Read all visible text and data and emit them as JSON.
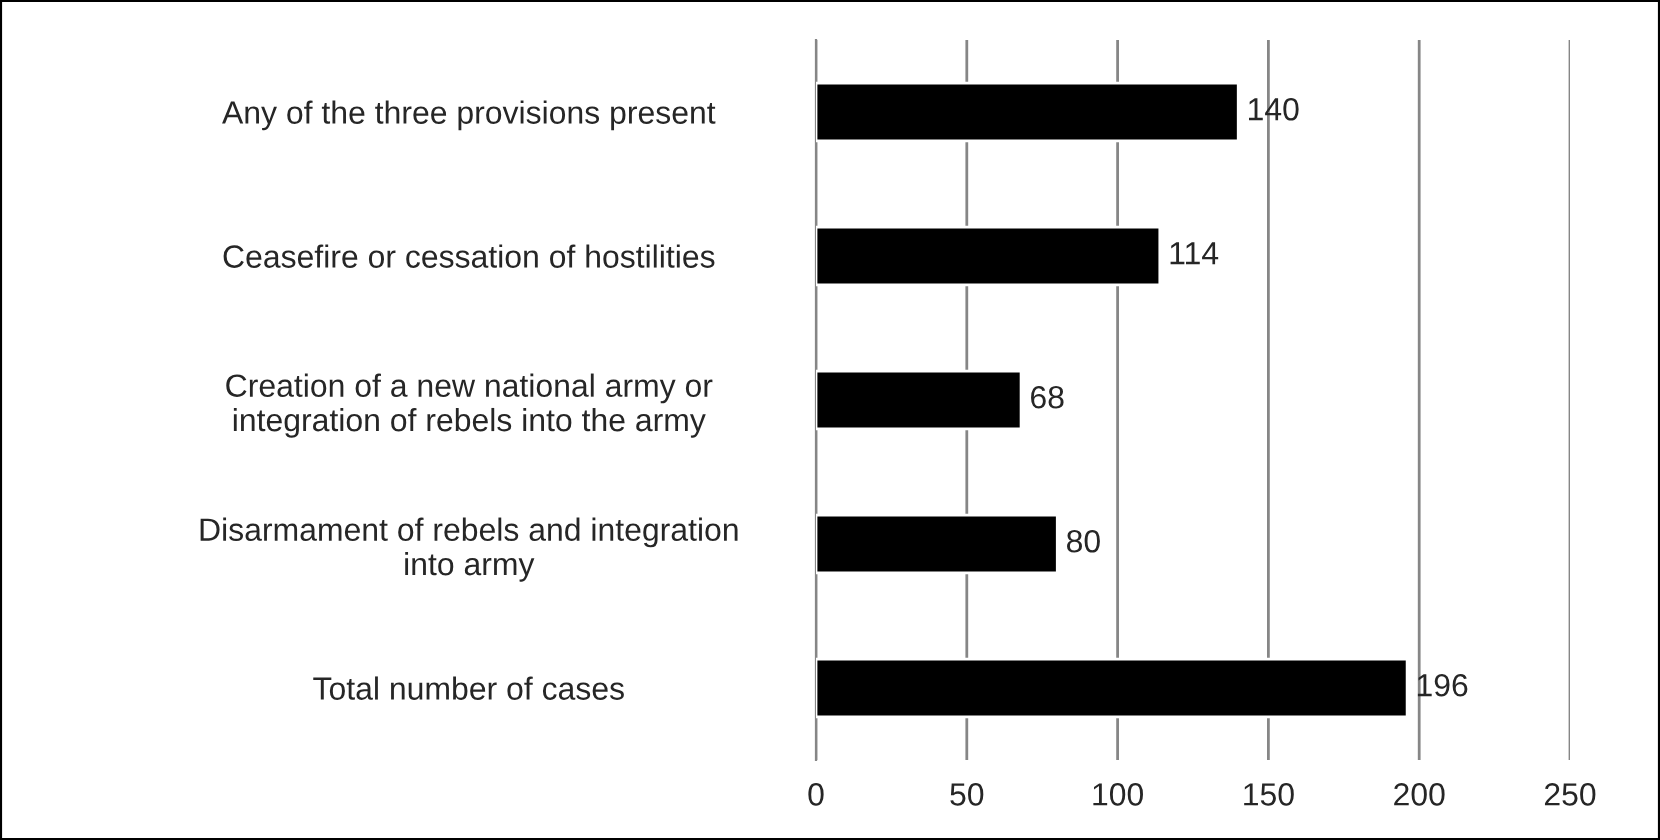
{
  "chart_data": {
    "type": "bar",
    "orientation": "horizontal",
    "categories": [
      "Any of the three provisions present",
      "Ceasefire or cessation of hostilities",
      "Creation of a new national army or\nintegration of rebels into the army",
      "Disarmament of rebels and integration\ninto army",
      "Total number of cases"
    ],
    "values": [
      140,
      114,
      68,
      80,
      196
    ],
    "color": "#000000",
    "xlim": [
      0,
      250
    ],
    "xticks": [
      0,
      50,
      100,
      150,
      200,
      250
    ],
    "grid": "x",
    "data_labels": true
  }
}
